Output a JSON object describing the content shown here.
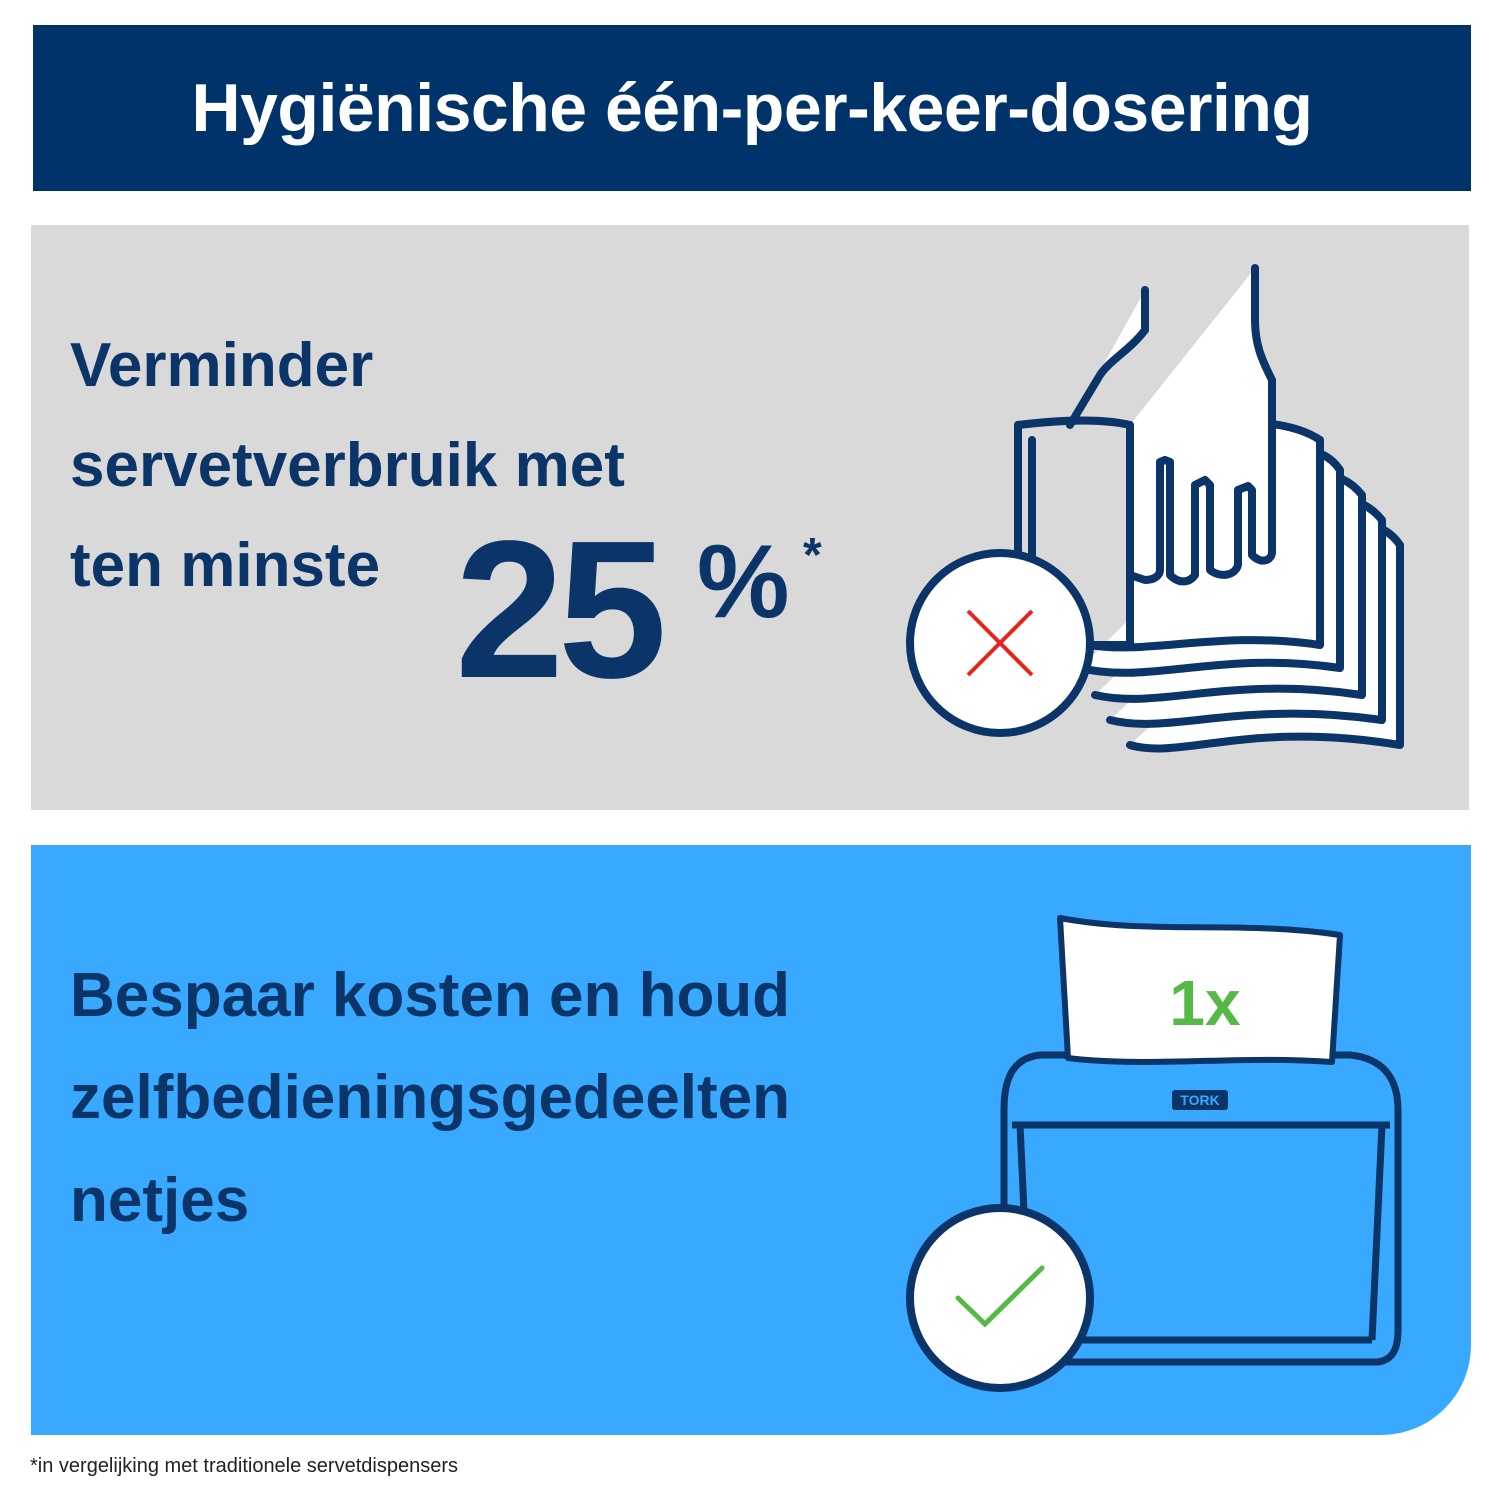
{
  "header": {
    "title": "Hygiënische één-per-keer-dosering"
  },
  "panels": [
    {
      "lines": [
        "Verminder",
        "servetverbruik met",
        "ten minste"
      ],
      "figure": "25",
      "unit": "%",
      "marker": "*"
    },
    {
      "lines": [
        "Bespaar kosten en houd",
        "zelfbedieningsgedeelten",
        "netjes"
      ],
      "badge": "1x",
      "brand": "TORK"
    }
  ],
  "footnote": "*in vergelijking met traditionele servetdispensers"
}
